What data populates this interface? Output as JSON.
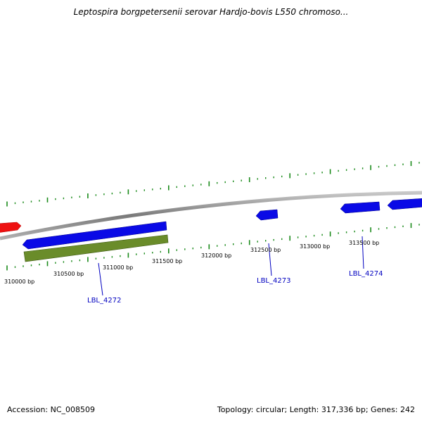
{
  "title": "Leptospira borgpetersenii serovar Hardjo-bovis L550 chromoso...",
  "footer": {
    "accession": "Accession: NC_008509",
    "stats": "Topology: circular; Length: 317,336 bp; Genes: 242"
  },
  "colors": {
    "backbone": "#8a8a8a",
    "tick": "#1a8a1a",
    "gene_blue": "#0a0ae6",
    "gene_red": "#ee1111",
    "gene_green": "#6a8c2a",
    "label": "#0000c0"
  },
  "scale_labels": [
    "310000 bp",
    "310500 bp",
    "311000 bp",
    "311500 bp",
    "312000 bp",
    "312500 bp",
    "313000 bp",
    "313500 bp"
  ],
  "gene_labels": [
    "LBL_4272",
    "LBL_4273",
    "LBL_4274"
  ],
  "features": [
    {
      "id": "red-gene",
      "color": "red"
    },
    {
      "id": "blue-gene-1",
      "color": "blue"
    },
    {
      "id": "green-gene",
      "color": "green"
    },
    {
      "id": "blue-gene-2",
      "color": "blue"
    },
    {
      "id": "blue-gene-3",
      "color": "blue"
    },
    {
      "id": "blue-gene-4",
      "color": "blue"
    }
  ]
}
